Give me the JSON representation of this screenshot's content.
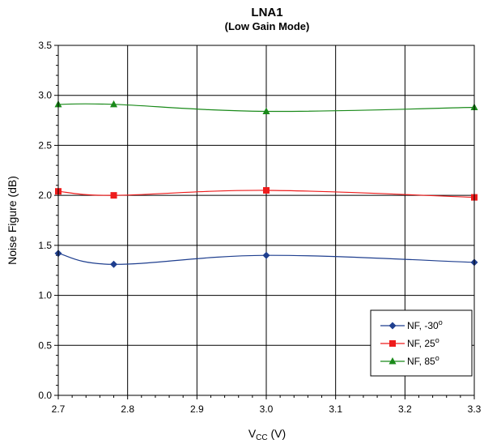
{
  "chart_data": {
    "type": "line",
    "title": "LNA1",
    "subtitle": "(Low Gain Mode)",
    "xlabel_main": "V",
    "xlabel_sub": "CC",
    "xlabel_unit": " (V)",
    "ylabel": "Noise Figure (dB)",
    "xlim": [
      2.7,
      3.3
    ],
    "ylim": [
      0.0,
      3.5
    ],
    "x_ticks": [
      2.7,
      2.8,
      2.9,
      3.0,
      3.1,
      3.2,
      3.3
    ],
    "x_tick_labels": [
      "2.7",
      "2.8",
      "2.9",
      "3.0",
      "3.1",
      "3.2",
      "3.3"
    ],
    "y_ticks": [
      0.0,
      0.5,
      1.0,
      1.5,
      2.0,
      2.5,
      3.0,
      3.5
    ],
    "y_tick_labels": [
      "0.0",
      "0.5",
      "1.0",
      "1.5",
      "2.0",
      "2.5",
      "3.0",
      "3.5"
    ],
    "grid": true,
    "legend_position": "bottom-right",
    "series": [
      {
        "name": "NF, -30",
        "degree": "o",
        "color": "#1f3f8f",
        "marker": "diamond",
        "x": [
          2.7,
          2.78,
          3.0,
          3.3
        ],
        "y": [
          1.42,
          1.31,
          1.4,
          1.33
        ]
      },
      {
        "name": "NF, 25",
        "degree": "o",
        "color": "#ee1c1c",
        "marker": "square",
        "x": [
          2.7,
          2.78,
          3.0,
          3.3
        ],
        "y": [
          2.04,
          2.0,
          2.05,
          1.98
        ]
      },
      {
        "name": "NF, 85",
        "degree": "o",
        "color": "#1a8a1a",
        "marker": "triangle",
        "x": [
          2.7,
          2.78,
          3.0,
          3.3
        ],
        "y": [
          2.91,
          2.91,
          2.84,
          2.88
        ]
      }
    ]
  }
}
